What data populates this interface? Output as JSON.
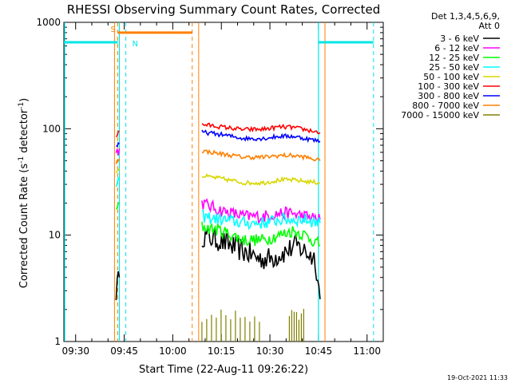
{
  "chart_data": {
    "type": "line",
    "title": "RHESSI Observing Summary Count Rates, Corrected",
    "xlabel": "Start Time (22-Aug-11 09:26:22)",
    "ylabel": "Corrected Count Rate (s-1 detector-1)",
    "ylabel_parts": {
      "pre": "Corrected Count Rate (s",
      "sup1": "-1",
      "mid": " detector",
      "sup2": "-1",
      "post": ")"
    },
    "yscale": "log",
    "ylim": [
      1,
      1000
    ],
    "xlim": [
      "09:26:22",
      "11:05:00"
    ],
    "xticks": [
      "09:30",
      "09:45",
      "10:00",
      "10:15",
      "10:30",
      "10:45",
      "11:00"
    ],
    "yticks": [
      "1",
      "10",
      "100",
      "1000"
    ],
    "legend_header": [
      "Det 1,3,4,5,6,9,",
      "Att 0"
    ],
    "footer_date": "19-Oct-2021 11:33",
    "series": [
      {
        "name": "3 - 6 keV",
        "color": "#000000",
        "segments": [
          {
            "t": [
              "09:42:30",
              "09:43:30"
            ],
            "y": [
              3,
              4
            ]
          },
          {
            "t": [
              "10:09:00",
              "10:14:00",
              "10:22:00",
              "10:27:00",
              "10:30:00",
              "10:35:00",
              "10:38:00",
              "10:41:00",
              "10:44:00",
              "10:45:30"
            ],
            "y": [
              10,
              9,
              7,
              6,
              6,
              7,
              8,
              7,
              6,
              2.5
            ]
          }
        ]
      },
      {
        "name": "6 - 12 keV",
        "color": "#ff00ff",
        "segments": [
          {
            "t": [
              "09:42:30",
              "09:43:30"
            ],
            "y": [
              60,
              65
            ]
          },
          {
            "t": [
              "10:09:00",
              "10:15:00",
              "10:22:00",
              "10:28:00",
              "10:33:00",
              "10:37:00",
              "10:41:00",
              "10:45:30"
            ],
            "y": [
              20,
              17,
              15,
              15,
              16,
              16,
              15,
              14
            ]
          }
        ]
      },
      {
        "name": "12 - 25 keV",
        "color": "#00ff00",
        "segments": [
          {
            "t": [
              "09:42:30",
              "09:43:30"
            ],
            "y": [
              17,
              20
            ]
          },
          {
            "t": [
              "10:09:00",
              "10:15:00",
              "10:22:00",
              "10:28:00",
              "10:33:00",
              "10:37:00",
              "10:41:00",
              "10:45:30"
            ],
            "y": [
              12,
              11,
              9,
              9,
              10,
              11,
              10,
              8
            ]
          }
        ]
      },
      {
        "name": "25 - 50 keV",
        "color": "#00ffff",
        "segments": [
          {
            "t": [
              "09:42:30",
              "09:43:30"
            ],
            "y": [
              30,
              33
            ]
          },
          {
            "t": [
              "10:09:00",
              "10:15:00",
              "10:22:00",
              "10:28:00",
              "10:33:00",
              "10:37:00",
              "10:41:00",
              "10:45:30"
            ],
            "y": [
              15,
              14,
              13,
              13,
              14,
              14,
              14,
              13
            ]
          }
        ]
      },
      {
        "name": "50 - 100 keV",
        "color": "#d7d700",
        "segments": [
          {
            "t": [
              "09:42:30",
              "09:43:30"
            ],
            "y": [
              40,
              42
            ]
          },
          {
            "t": [
              "10:09:00",
              "10:15:00",
              "10:22:00",
              "10:28:00",
              "10:33:00",
              "10:37:00",
              "10:41:00",
              "10:45:30"
            ],
            "y": [
              36,
              34,
              31,
              31,
              33,
              33,
              32,
              31
            ]
          }
        ]
      },
      {
        "name": "100 - 300 keV",
        "color": "#ff0000",
        "segments": [
          {
            "t": [
              "09:42:30",
              "09:43:30"
            ],
            "y": [
              85,
              95
            ]
          },
          {
            "t": [
              "10:09:00",
              "10:15:00",
              "10:22:00",
              "10:28:00",
              "10:33:00",
              "10:37:00",
              "10:41:00",
              "10:45:30"
            ],
            "y": [
              110,
              104,
              98,
              99,
              104,
              103,
              98,
              92
            ]
          }
        ]
      },
      {
        "name": "300 - 800 keV",
        "color": "#0000ff",
        "segments": [
          {
            "t": [
              "09:42:30",
              "09:43:30"
            ],
            "y": [
              68,
              72
            ]
          },
          {
            "t": [
              "10:09:00",
              "10:15:00",
              "10:22:00",
              "10:28:00",
              "10:33:00",
              "10:37:00",
              "10:41:00",
              "10:45:30"
            ],
            "y": [
              93,
              88,
              81,
              81,
              85,
              85,
              81,
              76
            ]
          }
        ]
      },
      {
        "name": "800 - 7000 keV",
        "color": "#ff8000",
        "segments": [
          {
            "t": [
              "09:42:30",
              "09:43:30"
            ],
            "y": [
              48,
              52
            ]
          },
          {
            "t": [
              "10:09:00",
              "10:15:00",
              "10:22:00",
              "10:28:00",
              "10:33:00",
              "10:37:00",
              "10:41:00",
              "10:45:30"
            ],
            "y": [
              62,
              58,
              54,
              54,
              56,
              56,
              54,
              50
            ]
          }
        ]
      },
      {
        "name": "7000 - 15000 keV",
        "color": "#808000",
        "segments": [
          {
            "t": [
              "10:09:00",
              "10:28:00"
            ],
            "y": [
              1.5,
              1.5
            ]
          },
          {
            "t": [
              "10:36:00",
              "10:41:00"
            ],
            "y": [
              1.6,
              1.6
            ]
          }
        ]
      }
    ],
    "annotations": {
      "saa": {
        "label": "S",
        "color": "#ff8000",
        "start": "09:43:00",
        "end": "10:06:00",
        "y": 800
      },
      "night": {
        "label": "N",
        "color": "#00e5e5",
        "y": 650,
        "intervals": [
          {
            "start": "09:26:22",
            "end": "09:43:00"
          },
          {
            "start": "10:45:00",
            "end": "11:02:00"
          }
        ],
        "start_lines": [
          "09:43:30",
          "10:45:00"
        ],
        "end_lines": [
          "09:45:30",
          "11:02:00"
        ]
      },
      "saa_lines": [
        "09:43:00",
        "10:06:00"
      ],
      "gap_edges": [
        "09:42:00",
        "10:08:00",
        "10:47:00"
      ]
    }
  }
}
